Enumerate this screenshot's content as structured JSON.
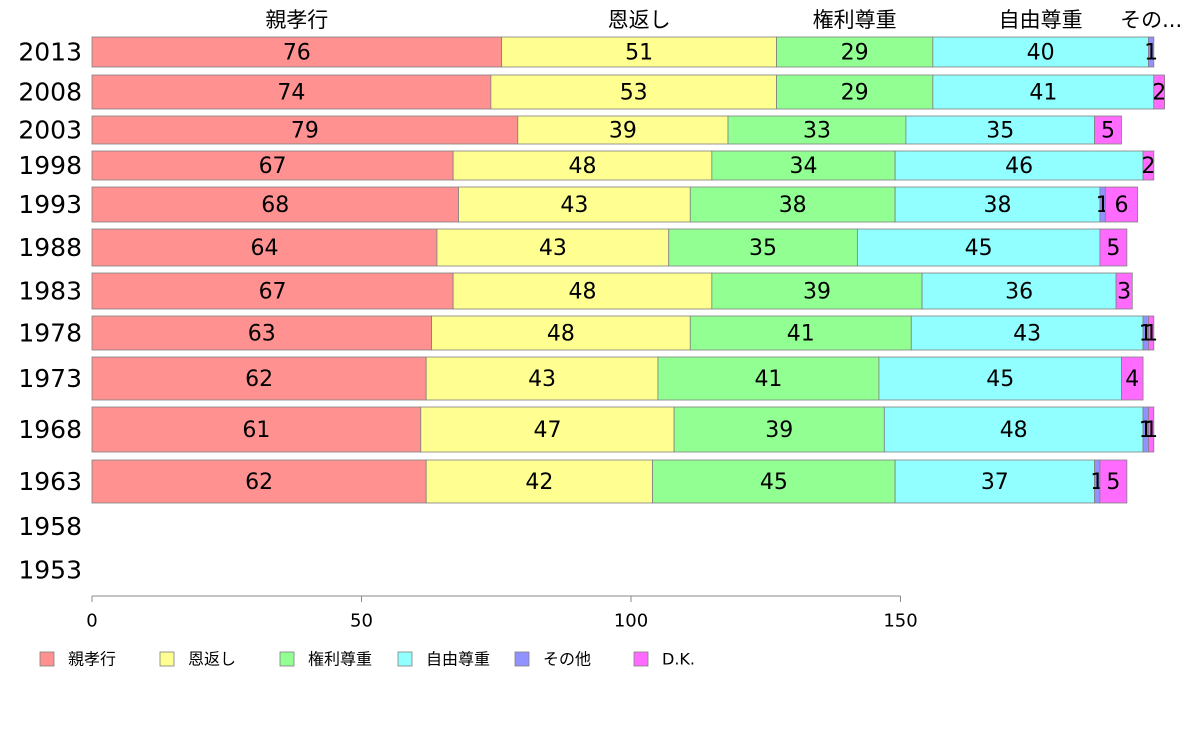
{
  "chart_data": {
    "type": "bar",
    "orientation": "horizontal",
    "stacked": true,
    "categories": [
      "2013",
      "2008",
      "2003",
      "1998",
      "1993",
      "1988",
      "1983",
      "1978",
      "1973",
      "1968",
      "1963",
      "1958",
      "1953"
    ],
    "series": [
      {
        "name": "親孝行",
        "color": "#ff9191",
        "values": [
          76,
          74,
          79,
          67,
          68,
          64,
          67,
          63,
          62,
          61,
          62,
          null,
          null
        ]
      },
      {
        "name": "恩返し",
        "color": "#ffff91",
        "values": [
          51,
          53,
          39,
          48,
          43,
          43,
          48,
          48,
          43,
          47,
          42,
          null,
          null
        ]
      },
      {
        "name": "権利尊重",
        "color": "#91ff91",
        "values": [
          29,
          29,
          33,
          34,
          38,
          35,
          39,
          41,
          41,
          39,
          45,
          null,
          null
        ]
      },
      {
        "name": "自由尊重",
        "color": "#91ffff",
        "values": [
          40,
          41,
          35,
          46,
          38,
          45,
          36,
          43,
          45,
          48,
          37,
          null,
          null
        ]
      },
      {
        "name": "その他",
        "color": "#9191ff",
        "values": [
          1,
          0,
          0,
          0,
          1,
          0,
          0,
          1,
          0,
          1,
          1,
          null,
          null
        ]
      },
      {
        "name": "D.K.",
        "color": "#ff6bff",
        "values": [
          0,
          2,
          5,
          2,
          6,
          5,
          3,
          1,
          4,
          1,
          5,
          null,
          null
        ]
      }
    ],
    "top_labels": [
      "親孝行",
      "恩返し",
      "権利尊重",
      "自由尊重",
      "その..."
    ],
    "xlim": [
      0,
      200
    ],
    "xticks": [
      0,
      50,
      100,
      150
    ],
    "grid": false,
    "legend_position": "bottom"
  }
}
